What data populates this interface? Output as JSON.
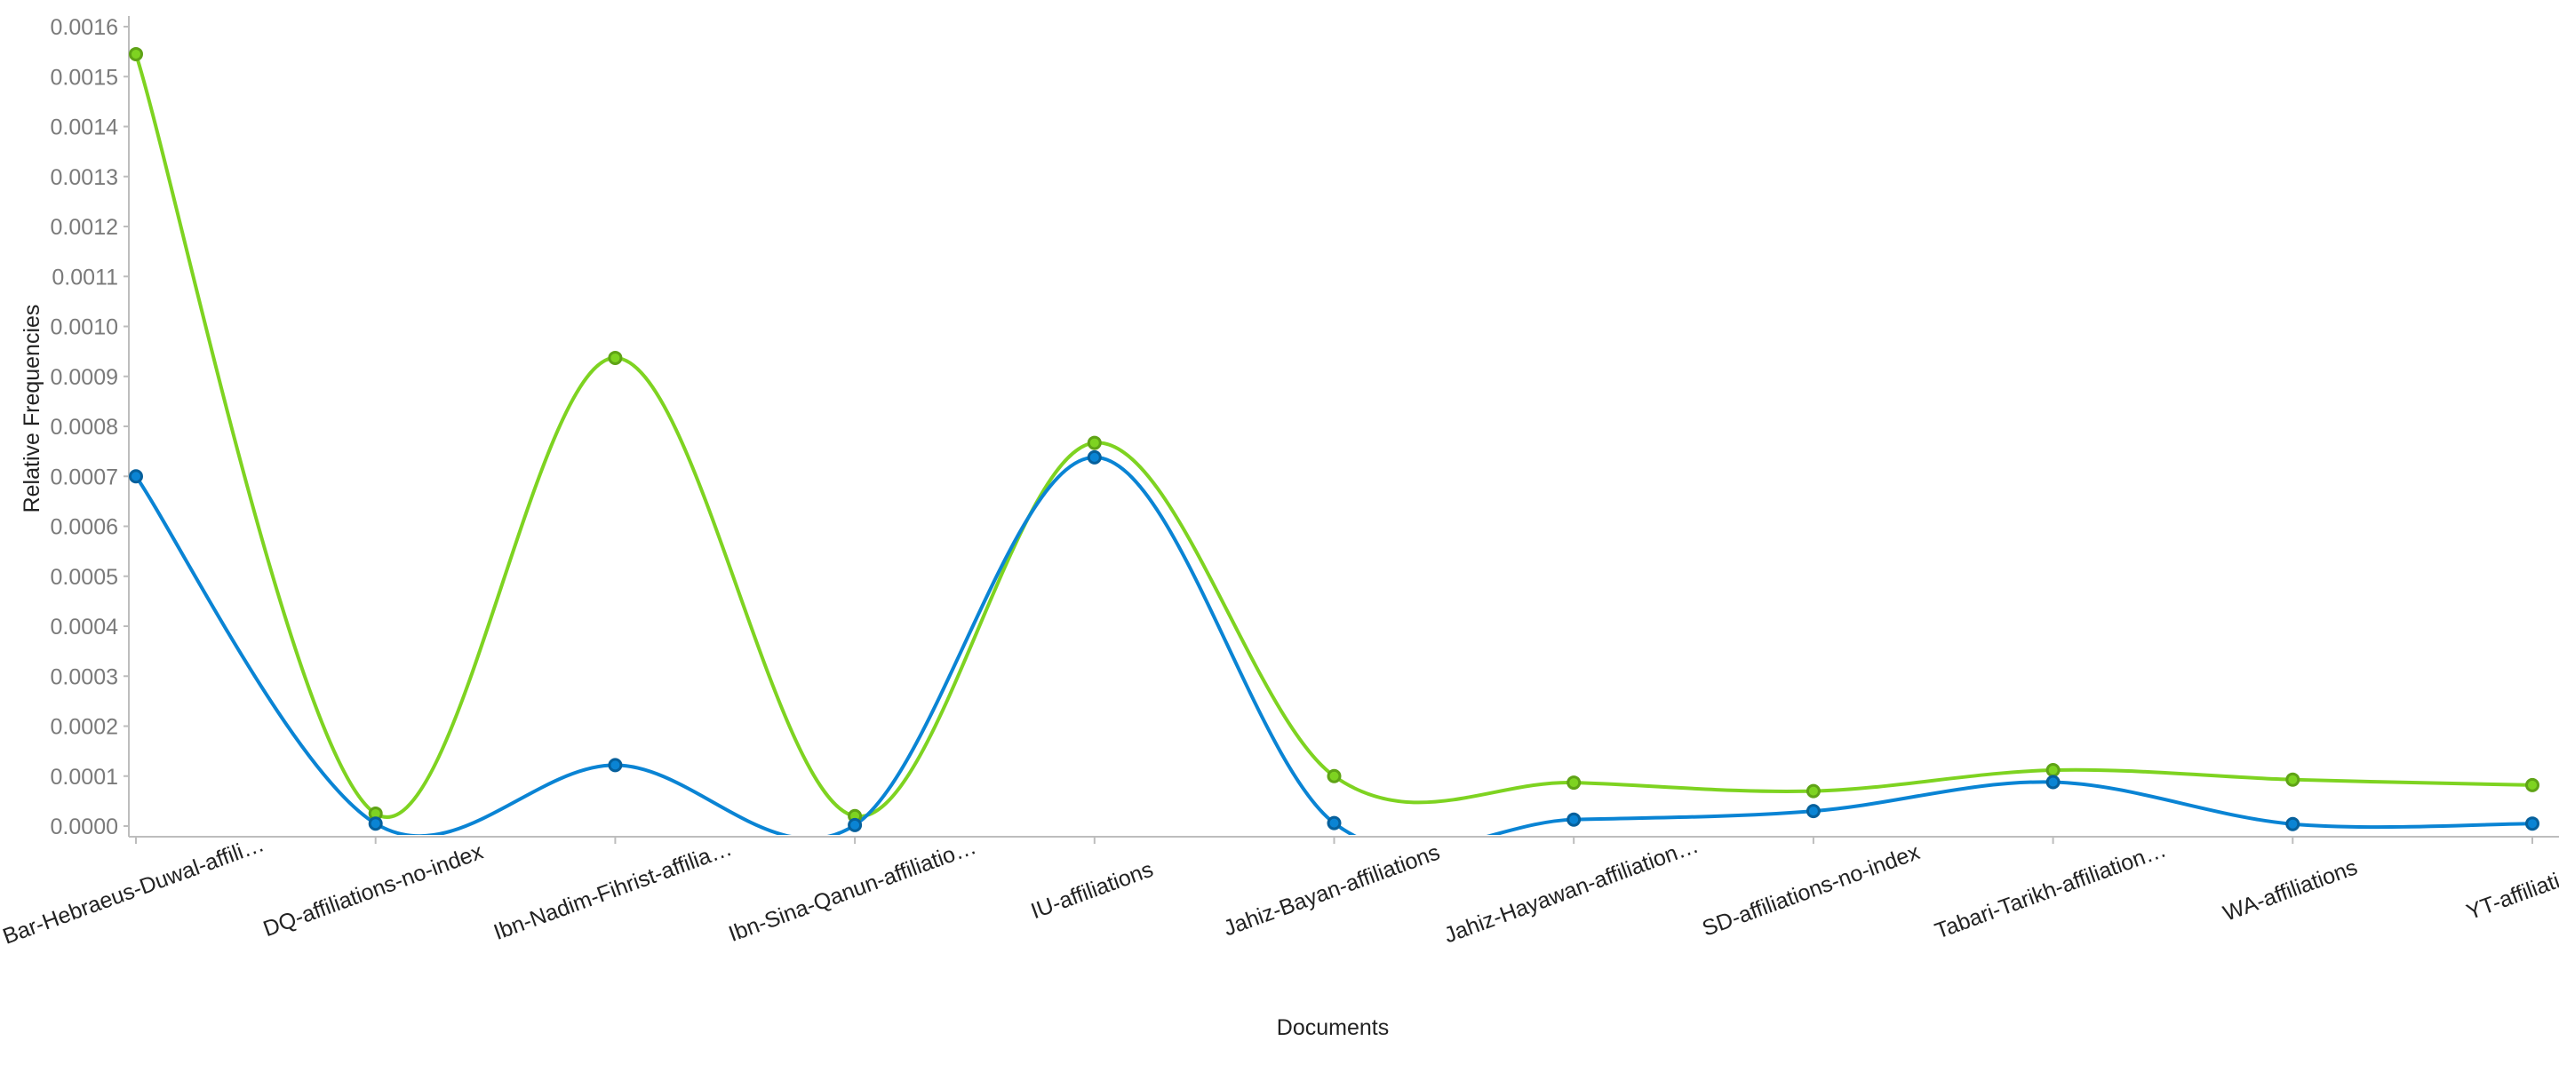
{
  "chart_data": {
    "type": "line",
    "title": "",
    "xlabel": "Documents",
    "ylabel": "Relative Frequencies",
    "ylim": [
      0,
      0.0016
    ],
    "yticks": [
      "0.0000",
      "0.0001",
      "0.0002",
      "0.0003",
      "0.0004",
      "0.0005",
      "0.0006",
      "0.0007",
      "0.0008",
      "0.0009",
      "0.0010",
      "0.0011",
      "0.0012",
      "0.0013",
      "0.0014",
      "0.0015",
      "0.0016"
    ],
    "categories": [
      "Bar-Hebraeus-Duwal-affili…",
      "DQ-affiliations-no-index",
      "Ibn-Nadim-Fihrist-affilia…",
      "Ibn-Sina-Qanun-affiliatio…",
      "IU-affiliations",
      "Jahiz-Bayan-affiliations",
      "Jahiz-Hayawan-affiliation…",
      "SD-affiliations-no-index",
      "Tabari-Tarikh-affiliation…",
      "WA-affiliations",
      "YT-affiliations"
    ],
    "grid": false,
    "legend": "none",
    "series": [
      {
        "color": "#0a84d4",
        "values": [
          0.0007,
          5e-06,
          0.000122,
          2e-06,
          0.000738,
          6e-06,
          1.3e-05,
          3e-05,
          8.8e-05,
          4e-06,
          5e-06
        ]
      },
      {
        "color": "#7ed321",
        "values": [
          0.001545,
          2.5e-05,
          0.000937,
          2e-05,
          0.000767,
          0.0001,
          8.7e-05,
          7e-05,
          0.000112,
          9.3e-05,
          8.2e-05
        ]
      }
    ]
  }
}
